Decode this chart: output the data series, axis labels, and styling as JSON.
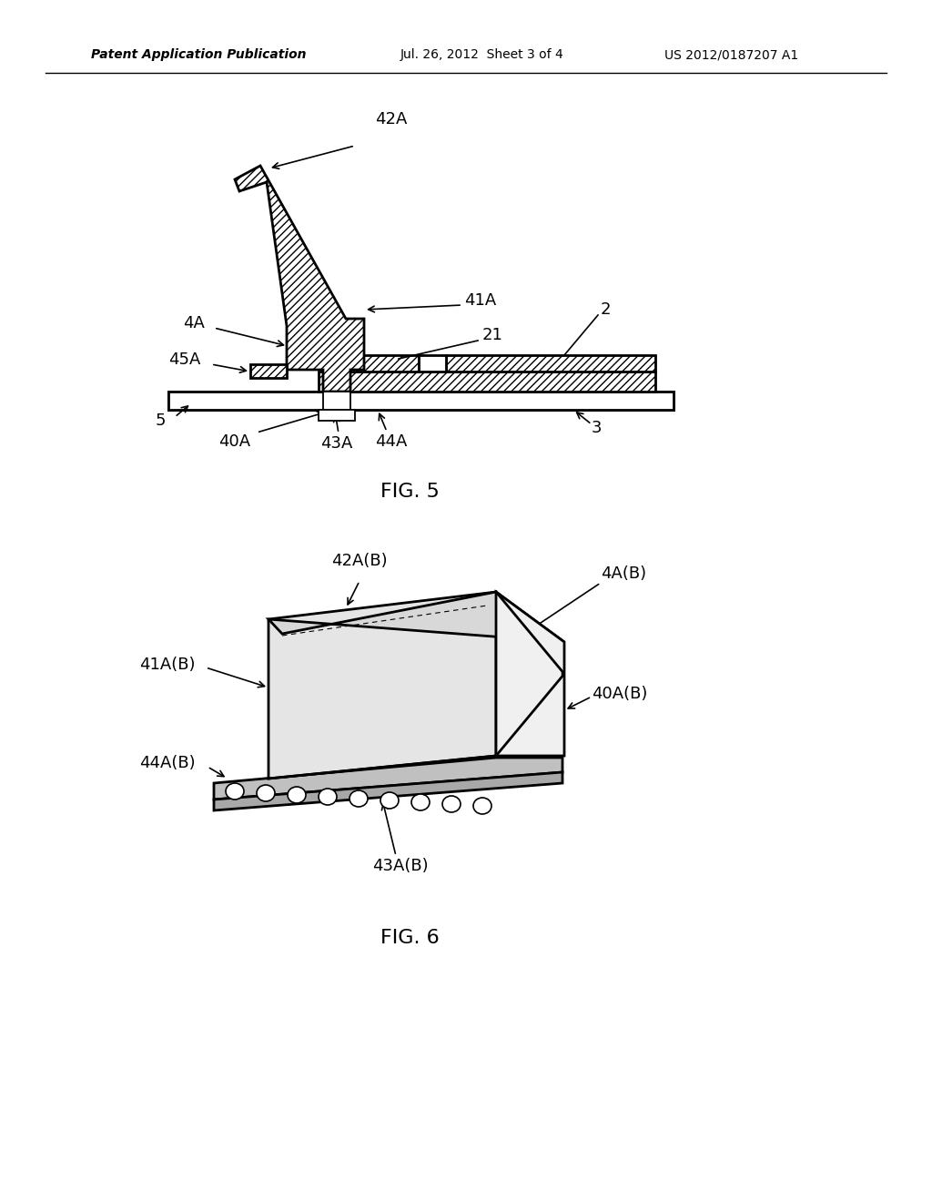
{
  "bg_color": "#ffffff",
  "line_color": "#000000",
  "header_left": "Patent Application Publication",
  "header_mid": "Jul. 26, 2012  Sheet 3 of 4",
  "header_right": "US 2012/0187207 A1",
  "fig5_label": "FIG. 5",
  "fig6_label": "FIG. 6"
}
